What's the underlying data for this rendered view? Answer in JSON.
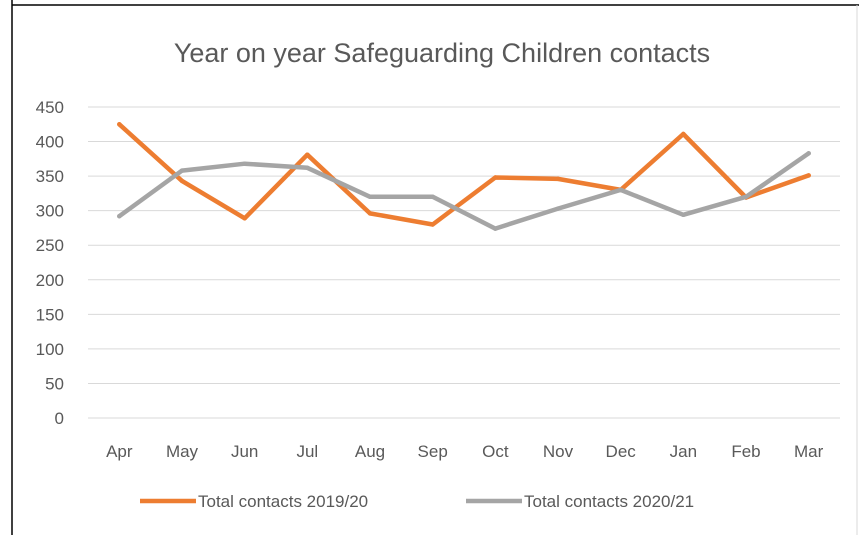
{
  "chart_data": {
    "type": "line",
    "title": "Year on year Safeguarding Children contacts",
    "categories": [
      "Apr",
      "May",
      "Jun",
      "Jul",
      "Aug",
      "Sep",
      "Oct",
      "Nov",
      "Dec",
      "Jan",
      "Feb",
      "Mar"
    ],
    "series": [
      {
        "name": "Total contacts 2019/20",
        "color": "#ED7D31",
        "values": [
          425,
          343,
          289,
          381,
          296,
          280,
          348,
          346,
          330,
          411,
          319,
          351
        ]
      },
      {
        "name": "Total contacts 2020/21",
        "color": "#A5A5A5",
        "values": [
          292,
          358,
          368,
          362,
          320,
          320,
          274,
          303,
          330,
          294,
          320,
          383
        ]
      }
    ],
    "yticks": [
      "0",
      "50",
      "100",
      "150",
      "200",
      "250",
      "300",
      "350",
      "400",
      "450"
    ],
    "ylim": [
      0,
      450
    ],
    "xlabel": "",
    "ylabel": "",
    "grid": true,
    "legend_position": "bottom"
  }
}
